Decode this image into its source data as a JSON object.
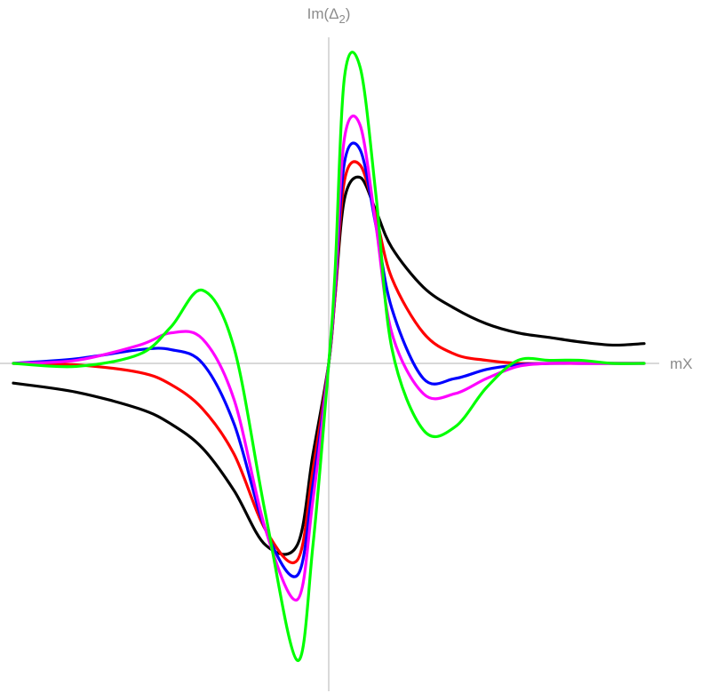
{
  "chart_data": {
    "type": "line",
    "xlabel": "mX",
    "ylabel": "Im(Δ2)",
    "ylabel_base": "Im(Δ",
    "ylabel_sub": "2",
    "ylabel_close": ")",
    "xlim": [
      -1,
      1
    ],
    "ylim": [
      -1,
      1
    ],
    "grid": false,
    "legend": "none",
    "series": [
      {
        "color": "#000000",
        "x": [
          -1.0,
          -0.8,
          -0.6,
          -0.5,
          -0.4,
          -0.3,
          -0.2,
          -0.1,
          -0.05,
          0.0,
          0.02,
          0.05,
          0.1,
          0.15,
          0.2,
          0.3,
          0.4,
          0.5,
          0.6,
          0.7,
          0.8,
          0.9,
          1.0
        ],
        "y": [
          -0.065,
          -0.095,
          -0.15,
          -0.2,
          -0.28,
          -0.42,
          -0.6,
          -0.6,
          -0.3,
          0.0,
          0.22,
          0.54,
          0.61,
          0.5,
          0.38,
          0.25,
          0.18,
          0.13,
          0.1,
          0.085,
          0.07,
          0.06,
          0.065
        ]
      },
      {
        "color": "#ff0000",
        "x": [
          -1.0,
          -0.8,
          -0.6,
          -0.5,
          -0.4,
          -0.3,
          -0.2,
          -0.1,
          -0.05,
          0.0,
          0.02,
          0.05,
          0.1,
          0.15,
          0.2,
          0.3,
          0.4,
          0.5,
          0.6,
          0.7,
          0.8,
          0.9,
          1.0
        ],
        "y": [
          0.0,
          -0.005,
          -0.03,
          -0.07,
          -0.15,
          -0.3,
          -0.55,
          -0.65,
          -0.35,
          0.0,
          0.22,
          0.6,
          0.65,
          0.48,
          0.28,
          0.1,
          0.03,
          0.01,
          0.0,
          0.0,
          0.0,
          0.0,
          0.0
        ]
      },
      {
        "color": "#0000ff",
        "x": [
          -1.0,
          -0.8,
          -0.6,
          -0.5,
          -0.4,
          -0.3,
          -0.2,
          -0.1,
          -0.05,
          0.0,
          0.02,
          0.05,
          0.1,
          0.15,
          0.2,
          0.3,
          0.4,
          0.5,
          0.6,
          0.7,
          0.8,
          0.9,
          1.0
        ],
        "y": [
          0.0,
          0.015,
          0.045,
          0.045,
          0.0,
          -0.2,
          -0.55,
          -0.7,
          -0.4,
          0.0,
          0.24,
          0.66,
          0.7,
          0.45,
          0.18,
          -0.05,
          -0.05,
          -0.02,
          -0.005,
          0.0,
          0.0,
          0.0,
          0.0
        ]
      },
      {
        "color": "#ff00ff",
        "x": [
          -1.0,
          -0.8,
          -0.6,
          -0.5,
          -0.4,
          -0.3,
          -0.2,
          -0.1,
          -0.05,
          0.0,
          0.02,
          0.05,
          0.1,
          0.15,
          0.2,
          0.3,
          0.4,
          0.5,
          0.6,
          0.7,
          0.8,
          0.9,
          1.0
        ],
        "y": [
          0.0,
          0.01,
          0.06,
          0.1,
          0.08,
          -0.12,
          -0.55,
          -0.78,
          -0.45,
          0.0,
          0.26,
          0.74,
          0.78,
          0.45,
          0.1,
          -0.1,
          -0.1,
          -0.05,
          -0.01,
          0.0,
          0.0,
          0.0,
          0.0
        ]
      },
      {
        "color": "#00ff00",
        "x": [
          -1.0,
          -0.8,
          -0.6,
          -0.5,
          -0.4,
          -0.3,
          -0.2,
          -0.1,
          -0.05,
          0.0,
          0.02,
          0.05,
          0.1,
          0.15,
          0.2,
          0.3,
          0.4,
          0.5,
          0.6,
          0.7,
          0.8,
          0.9,
          1.0
        ],
        "y": [
          0.0,
          -0.01,
          0.03,
          0.12,
          0.24,
          0.05,
          -0.5,
          -0.98,
          -0.6,
          0.0,
          0.3,
          0.94,
          0.97,
          0.55,
          0.05,
          -0.22,
          -0.21,
          -0.08,
          0.01,
          0.01,
          0.01,
          0.0,
          0.0
        ]
      }
    ]
  }
}
